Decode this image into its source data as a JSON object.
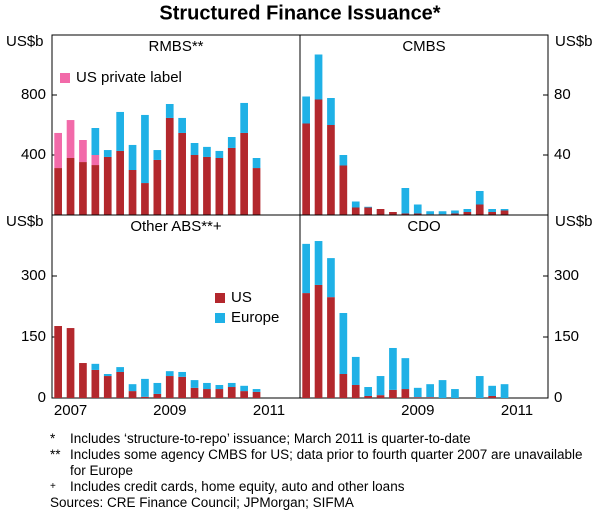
{
  "title": "Structured Finance Issuance*",
  "chart_data": [
    {
      "type": "stacked-bar",
      "title": "RMBS**",
      "ylabel": "US$b",
      "axis_side": "left",
      "row": 0,
      "col": 0,
      "ylim": [
        0,
        1200
      ],
      "yticks": [
        400,
        800
      ],
      "categories": [
        null,
        null,
        null,
        null,
        null,
        null,
        null,
        null,
        null,
        null,
        null,
        null,
        null,
        null,
        null,
        null,
        null,
        null,
        null,
        null
      ],
      "series": [
        {
          "name": "US",
          "color": "#b3282d",
          "values": [
            313,
            380,
            353,
            333,
            387,
            427,
            300,
            213,
            367,
            647,
            547,
            400,
            387,
            380,
            447,
            547,
            313,
            null,
            null,
            null
          ]
        },
        {
          "name": "US private label",
          "color": "#f26aa9",
          "values": [
            234,
            253,
            147,
            67,
            0,
            0,
            0,
            0,
            0,
            0,
            0,
            0,
            0,
            0,
            0,
            0,
            0,
            null,
            null,
            null
          ],
          "legend": true
        },
        {
          "name": "Europe",
          "color": "#1fb1e6",
          "values": [
            0,
            0,
            0,
            180,
            46,
            260,
            167,
            454,
            66,
            93,
            100,
            80,
            67,
            47,
            73,
            200,
            67,
            null,
            null,
            null
          ]
        }
      ]
    },
    {
      "type": "stacked-bar",
      "title": "CMBS",
      "ylabel": "US$b",
      "axis_side": "right",
      "row": 0,
      "col": 1,
      "ylim": [
        0,
        120
      ],
      "yticks": [
        40,
        80
      ],
      "categories": [
        null,
        null,
        null,
        null,
        null,
        null,
        null,
        null,
        null,
        null,
        null,
        null,
        null,
        null,
        null,
        null,
        null,
        null,
        null,
        null
      ],
      "series": [
        {
          "name": "US",
          "color": "#b3282d",
          "values": [
            61,
            77,
            60,
            33,
            5,
            5,
            4,
            2,
            1,
            1,
            0.5,
            0.5,
            1,
            2,
            7,
            2,
            3,
            null,
            null,
            null
          ]
        },
        {
          "name": "Europe",
          "color": "#1fb1e6",
          "values": [
            18,
            30,
            18,
            7,
            4,
            0.5,
            0,
            0,
            17,
            6,
            2,
            2,
            2,
            2,
            9,
            2,
            1,
            null,
            null,
            null
          ]
        }
      ]
    },
    {
      "type": "stacked-bar",
      "title": "Other ABS**+",
      "ylabel": "US$b",
      "axis_side": "left",
      "row": 1,
      "col": 0,
      "ylim": [
        0,
        450
      ],
      "yticks": [
        0,
        150,
        300
      ],
      "categories": [
        null,
        "2007",
        null,
        null,
        null,
        null,
        null,
        null,
        null,
        "2009",
        null,
        null,
        null,
        null,
        null,
        null,
        null,
        "2011",
        null,
        null
      ],
      "series": [
        {
          "name": "US",
          "color": "#b3282d",
          "values": [
            177,
            172,
            86,
            69,
            54,
            64,
            17,
            3,
            10,
            54,
            52,
            25,
            22,
            22,
            27,
            17,
            15,
            null,
            null,
            null
          ],
          "legend": true
        },
        {
          "name": "Europe",
          "color": "#1fb1e6",
          "values": [
            0,
            0,
            0,
            15,
            5,
            12,
            17,
            44,
            27,
            12,
            12,
            19,
            15,
            10,
            10,
            13,
            7,
            null,
            null,
            null
          ],
          "legend": true
        }
      ]
    },
    {
      "type": "stacked-bar",
      "title": "CDO",
      "ylabel": "US$b",
      "axis_side": "right",
      "row": 1,
      "col": 1,
      "ylim": [
        0,
        450
      ],
      "yticks": [
        0,
        150,
        300
      ],
      "categories": [
        null,
        null,
        null,
        null,
        null,
        null,
        null,
        null,
        null,
        "2009",
        null,
        null,
        null,
        null,
        null,
        null,
        null,
        "2011",
        null,
        null
      ],
      "series": [
        {
          "name": "US",
          "color": "#b3282d",
          "values": [
            258,
            278,
            248,
            59,
            32,
            5,
            7,
            20,
            22,
            2,
            2,
            0,
            0,
            0,
            0,
            5,
            0,
            null,
            null,
            null
          ]
        },
        {
          "name": "Europe",
          "color": "#1fb1e6",
          "values": [
            121,
            108,
            96,
            150,
            69,
            22,
            47,
            103,
            76,
            23,
            32,
            44,
            22,
            0,
            54,
            25,
            34,
            null,
            null,
            null
          ]
        }
      ]
    }
  ],
  "footnotes": [
    {
      "marker": "*",
      "text": "Includes ‘structure-to-repo’ issuance; March 2011 is quarter-to-date"
    },
    {
      "marker": "**",
      "text": "Includes some agency CMBS for US; data prior to fourth quarter 2007 are unavailable for Europe"
    },
    {
      "marker": "+",
      "text": "Includes credit cards, home equity, auto and other loans"
    }
  ],
  "sources": "Sources: CRE Finance Council; JPMorgan; SIFMA"
}
